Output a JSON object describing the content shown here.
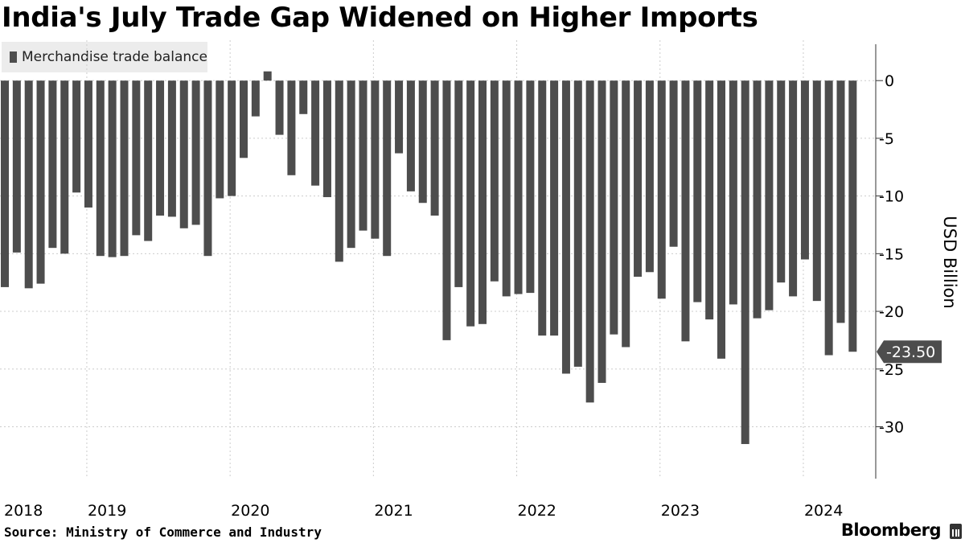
{
  "title": "India's July Trade Gap Widened on Higher Imports",
  "legend_label": "Merchandise trade balance",
  "source": "Source: Ministry of Commerce and Industry",
  "brand": "Bloomberg",
  "colors": {
    "bar": "#4d4d4d",
    "grid": "#cccccc",
    "axis": "#333333",
    "callout_bg": "#4d4d4d",
    "callout_text": "#ffffff"
  },
  "chart_data": {
    "type": "bar",
    "ylabel": "USD Billion",
    "ylim": [
      -34.5,
      3.5
    ],
    "yticks": [
      0,
      -5,
      -10,
      -15,
      -20,
      -25,
      -30
    ],
    "grid": true,
    "legend": "top-left",
    "year_labels": [
      {
        "label": "2018",
        "index": 0
      },
      {
        "label": "2019",
        "index": 7
      },
      {
        "label": "2020",
        "index": 19
      },
      {
        "label": "2021",
        "index": 31
      },
      {
        "label": "2022",
        "index": 43
      },
      {
        "label": "2023",
        "index": 55
      },
      {
        "label": "2024",
        "index": 67
      }
    ],
    "callout": {
      "label": "-23.50",
      "value": -23.5
    },
    "values": [
      -17.9,
      -14.9,
      -18.0,
      -17.6,
      -14.5,
      -15.0,
      -9.7,
      -11.0,
      -15.2,
      -15.3,
      -15.2,
      -13.4,
      -13.9,
      -11.7,
      -11.8,
      -12.8,
      -12.5,
      -15.2,
      -10.2,
      -10.0,
      -6.7,
      -3.1,
      0.8,
      -4.7,
      -8.2,
      -2.9,
      -9.1,
      -10.1,
      -15.7,
      -14.5,
      -13.0,
      -13.7,
      -15.2,
      -6.3,
      -9.6,
      -10.6,
      -11.7,
      -22.5,
      -17.9,
      -21.3,
      -21.1,
      -17.4,
      -18.7,
      -18.5,
      -18.4,
      -22.1,
      -22.1,
      -25.4,
      -24.8,
      -27.9,
      -26.2,
      -22.0,
      -23.1,
      -17.0,
      -16.6,
      -18.9,
      -14.4,
      -22.6,
      -19.2,
      -20.7,
      -24.1,
      -19.4,
      -31.5,
      -20.6,
      -19.9,
      -17.5,
      -18.7,
      -15.5,
      -19.1,
      -23.8,
      -21.0,
      -23.5
    ]
  }
}
